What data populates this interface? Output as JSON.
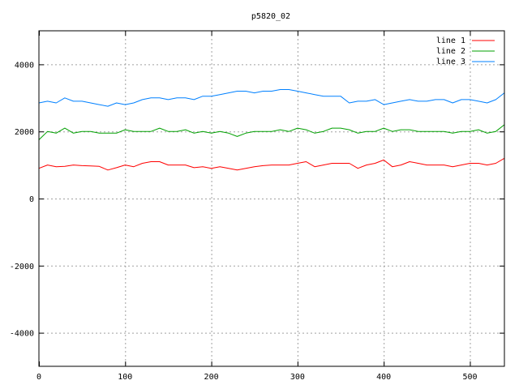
{
  "chart_data": {
    "type": "line",
    "title": "p5820_02",
    "xlabel": "",
    "ylabel": "",
    "xlim": [
      0,
      540
    ],
    "ylim": [
      -5000,
      5000
    ],
    "x_ticks": [
      0,
      100,
      200,
      300,
      400,
      500
    ],
    "y_ticks": [
      -4000,
      -2000,
      0,
      2000,
      4000
    ],
    "x_tick_labels": [
      "0",
      "100",
      "200",
      "300",
      "400",
      "500"
    ],
    "y_tick_labels": [
      "-4000",
      "-2000",
      "0",
      "2000",
      "4000"
    ],
    "grid": true,
    "legend_position": "top-right",
    "x": [
      0,
      10,
      20,
      30,
      40,
      50,
      60,
      70,
      80,
      90,
      100,
      110,
      120,
      130,
      140,
      150,
      160,
      170,
      180,
      190,
      200,
      210,
      220,
      230,
      240,
      250,
      260,
      270,
      280,
      290,
      300,
      310,
      320,
      330,
      340,
      350,
      360,
      370,
      380,
      390,
      400,
      410,
      420,
      430,
      440,
      450,
      460,
      470,
      480,
      490,
      500,
      510,
      520,
      530,
      540
    ],
    "series": [
      {
        "name": "line 1",
        "color": "#ff0000",
        "values": [
          900,
          1000,
          950,
          960,
          1000,
          980,
          970,
          960,
          850,
          920,
          1000,
          950,
          1050,
          1100,
          1100,
          1000,
          1000,
          1000,
          920,
          950,
          900,
          950,
          900,
          850,
          900,
          950,
          980,
          1000,
          1000,
          1000,
          1050,
          1100,
          950,
          1000,
          1050,
          1050,
          1050,
          900,
          1000,
          1050,
          1150,
          950,
          1000,
          1100,
          1050,
          1000,
          1000,
          1000,
          950,
          1000,
          1050,
          1050,
          1000,
          1050,
          1200
        ]
      },
      {
        "name": "line 2",
        "color": "#00a000",
        "values": [
          1750,
          2000,
          1950,
          2100,
          1950,
          2000,
          2000,
          1950,
          1950,
          1950,
          2050,
          2000,
          2000,
          2000,
          2100,
          2000,
          2000,
          2050,
          1950,
          2000,
          1950,
          2000,
          1950,
          1850,
          1950,
          2000,
          2000,
          2000,
          2050,
          2000,
          2100,
          2050,
          1950,
          2000,
          2100,
          2100,
          2050,
          1950,
          2000,
          2000,
          2100,
          2000,
          2050,
          2050,
          2000,
          2000,
          2000,
          2000,
          1950,
          2000,
          2000,
          2050,
          1950,
          2000,
          2200
        ]
      },
      {
        "name": "line 3",
        "color": "#0080ff",
        "values": [
          2850,
          2900,
          2850,
          3000,
          2900,
          2900,
          2850,
          2800,
          2750,
          2850,
          2800,
          2850,
          2950,
          3000,
          3000,
          2950,
          3000,
          3000,
          2950,
          3050,
          3050,
          3100,
          3150,
          3200,
          3200,
          3150,
          3200,
          3200,
          3250,
          3250,
          3200,
          3150,
          3100,
          3050,
          3050,
          3050,
          2850,
          2900,
          2900,
          2950,
          2800,
          2850,
          2900,
          2950,
          2900,
          2900,
          2950,
          2950,
          2850,
          2950,
          2950,
          2900,
          2850,
          2950,
          3150
        ]
      }
    ]
  }
}
